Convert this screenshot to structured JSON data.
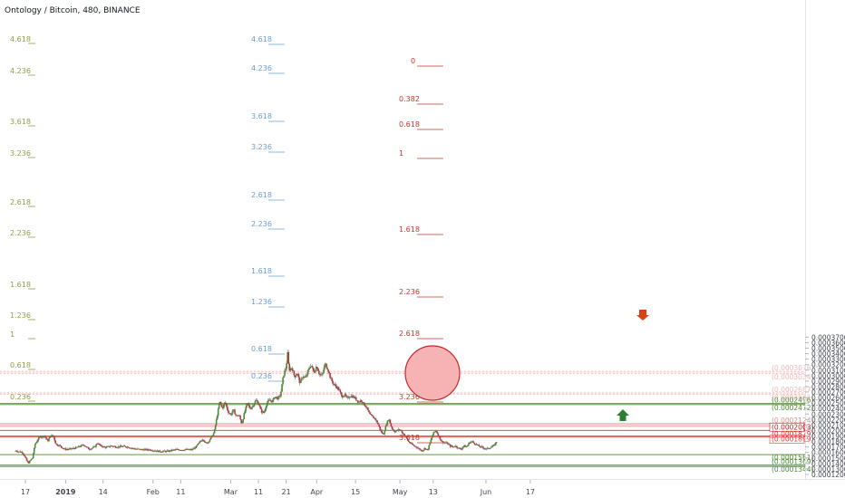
{
  "chart_data": {
    "type": "candlestick",
    "title": "Ontology / Bitcoin, 480, BINANCE",
    "xlabel": "",
    "ylabel": "",
    "ylim": [
      0.00011,
      0.00037
    ],
    "yticks": [
      "0.0003700",
      "0.0003600",
      "0.0003500",
      "0.0003400",
      "0.0003300",
      "0.0003200",
      "0.0003100",
      "0.0003000",
      "0.0002900",
      "0.0002800",
      "0.0002700",
      "0.0002600",
      "0.0002500",
      "0.0002400",
      "0.0002300",
      "0.0002200",
      "0.0002100",
      "0.0002000",
      "0.0001900",
      "0.0001800",
      "0.0001700",
      "0.0001600",
      "0.0001500",
      "0.0001400",
      "0.0001300",
      "0.0001200"
    ],
    "xticks": [
      {
        "label": "17",
        "day": 0
      },
      {
        "label": "2019",
        "day": 14.5,
        "bold": true
      },
      {
        "label": "14",
        "day": 28
      },
      {
        "label": "Feb",
        "day": 46
      },
      {
        "label": "11",
        "day": 56
      },
      {
        "label": "Mar",
        "day": 74
      },
      {
        "label": "11",
        "day": 84
      },
      {
        "label": "21",
        "day": 94
      },
      {
        "label": "Apr",
        "day": 105
      },
      {
        "label": "15",
        "day": 119
      },
      {
        "label": "May",
        "day": 135
      },
      {
        "label": "13",
        "day": 147
      },
      {
        "label": "Jun",
        "day": 166
      },
      {
        "label": "17",
        "day": 182
      }
    ],
    "price_path": [
      [
        -3.5,
        0.000163
      ],
      [
        -1,
        0.00016
      ],
      [
        1,
        0.00014
      ],
      [
        2.5,
        0.00015
      ],
      [
        3.5,
        0.000175
      ],
      [
        5,
        0.000188
      ],
      [
        7,
        0.00019
      ],
      [
        8,
        0.00018
      ],
      [
        9,
        0.00019
      ],
      [
        10,
        0.000191
      ],
      [
        11,
        0.000175
      ],
      [
        12.5,
        0.000172
      ],
      [
        14,
        0.000166
      ],
      [
        16,
        0.000166
      ],
      [
        18,
        0.000168
      ],
      [
        21,
        0.000174
      ],
      [
        23,
        0.000166
      ],
      [
        25,
        0.00017
      ],
      [
        26,
        0.000178
      ],
      [
        27,
        0.000172
      ],
      [
        29,
        0.000169
      ],
      [
        31,
        0.000172
      ],
      [
        33,
        0.00017
      ],
      [
        35,
        0.000171
      ],
      [
        37,
        0.00017
      ],
      [
        39,
        0.000167
      ],
      [
        42,
        0.000165
      ],
      [
        45,
        0.000165
      ],
      [
        48,
        0.000162
      ],
      [
        51,
        0.000162
      ],
      [
        54,
        0.000165
      ],
      [
        57,
        0.000165
      ],
      [
        60,
        0.000165
      ],
      [
        61.5,
        0.00017
      ],
      [
        63,
        0.00018
      ],
      [
        64,
        0.000185
      ],
      [
        65,
        0.000176
      ],
      [
        66,
        0.00018
      ],
      [
        67,
        0.000188
      ],
      [
        68,
        0.000196
      ],
      [
        68.7,
        0.000215
      ],
      [
        69.3,
        0.000232
      ],
      [
        70,
        0.000253
      ],
      [
        71,
        0.00024
      ],
      [
        72,
        0.000252
      ],
      [
        73,
        0.000235
      ],
      [
        74,
        0.000228
      ],
      [
        75,
        0.000238
      ],
      [
        76,
        0.000226
      ],
      [
        77,
        0.000228
      ],
      [
        78,
        0.000212
      ],
      [
        79,
        0.000233
      ],
      [
        80,
        0.00025
      ],
      [
        81,
        0.00024
      ],
      [
        82,
        0.000245
      ],
      [
        83,
        0.000255
      ],
      [
        84,
        0.00025
      ],
      [
        85,
        0.000235
      ],
      [
        86,
        0.000232
      ],
      [
        87,
        0.00025
      ],
      [
        88,
        0.000255
      ],
      [
        89,
        0.000253
      ],
      [
        90,
        0.000262
      ],
      [
        91,
        0.000258
      ],
      [
        92,
        0.000265
      ],
      [
        93,
        0.0003
      ],
      [
        94,
        0.000316
      ],
      [
        94.5,
        0.00034
      ],
      [
        95,
        0.00031
      ],
      [
        96,
        0.000315
      ],
      [
        97,
        0.000298
      ],
      [
        98,
        0.000305
      ],
      [
        99,
        0.000285
      ],
      [
        100,
        0.0003
      ],
      [
        101,
        0.000295
      ],
      [
        102,
        0.00031
      ],
      [
        103,
        0.00032
      ],
      [
        104,
        0.000305
      ],
      [
        105,
        0.000318
      ],
      [
        106,
        0.000302
      ],
      [
        107,
        0.0003
      ],
      [
        108,
        0.000322
      ],
      [
        109,
        0.000312
      ],
      [
        110,
        0.000295
      ],
      [
        111,
        0.000285
      ],
      [
        112,
        0.00028
      ],
      [
        113,
        0.000275
      ],
      [
        114,
        0.000262
      ],
      [
        115,
        0.000265
      ],
      [
        116,
        0.000258
      ],
      [
        117,
        0.000263
      ],
      [
        118,
        0.000262
      ],
      [
        119,
        0.000258
      ],
      [
        120,
        0.000252
      ],
      [
        121,
        0.000255
      ],
      [
        122,
        0.000248
      ],
      [
        123,
        0.000242
      ],
      [
        124,
        0.00023
      ],
      [
        125,
        0.000225
      ],
      [
        126,
        0.000222
      ],
      [
        127,
        0.000213
      ],
      [
        128,
        0.0002
      ],
      [
        129,
        0.000192
      ],
      [
        130,
        0.00021
      ],
      [
        131,
        0.000222
      ],
      [
        132,
        0.000205
      ],
      [
        133,
        0.000198
      ],
      [
        134,
        0.0002
      ],
      [
        135,
        0.000202
      ],
      [
        136,
        0.000195
      ],
      [
        137,
        0.00019
      ],
      [
        138,
        0.00018
      ],
      [
        139,
        0.000176
      ],
      [
        140,
        0.000172
      ],
      [
        141,
        0.00017
      ],
      [
        142,
        0.000166
      ],
      [
        143,
        0.000163
      ],
      [
        144,
        0.000168
      ],
      [
        145,
        0.000164
      ],
      [
        146,
        0.00018
      ],
      [
        147,
        0.000195
      ],
      [
        148,
        0.0002
      ],
      [
        149,
        0.00019
      ],
      [
        150,
        0.00018
      ],
      [
        151,
        0.000178
      ],
      [
        152,
        0.000177
      ],
      [
        153,
        0.000172
      ],
      [
        154,
        0.00017
      ],
      [
        155,
        0.000172
      ],
      [
        156,
        0.000168
      ],
      [
        157,
        0.000166
      ],
      [
        158,
        0.000172
      ],
      [
        159,
        0.00017
      ],
      [
        160,
        0.000178
      ],
      [
        161,
        0.00018
      ],
      [
        162,
        0.000176
      ],
      [
        163,
        0.000173
      ],
      [
        164,
        0.00017
      ],
      [
        165,
        0.000169
      ],
      [
        166,
        0.000166
      ],
      [
        167,
        0.000168
      ],
      [
        168,
        0.00017
      ],
      [
        169,
        0.000173
      ],
      [
        170,
        0.000181
      ]
    ],
    "fib_left_labels": [
      "4.618",
      "4.236",
      "3.618",
      "3.236",
      "2.618",
      "2.236",
      "1.618",
      "1.236",
      "1",
      "0.618",
      "0.236"
    ],
    "fib_mid_labels": [
      "4.618",
      "4.236",
      "3.618",
      "3.236",
      "2.618",
      "2.236",
      "1.618",
      "1.236",
      "0.618",
      "0.236"
    ],
    "fib_right_labels": [
      "0",
      "0.382",
      "0.618",
      "1",
      "1.618",
      "2.236",
      "2.618",
      "3.236",
      "3.618"
    ],
    "levels": [
      {
        "label": "(0.0003076)",
        "value": 0.0003076,
        "color": "#f2b8b8"
      },
      {
        "label": "(0.0003034)",
        "value": 0.0003034,
        "color": "#f2b8b8"
      },
      {
        "label": "(0.0002687)",
        "value": 0.0002687,
        "color": "#f2b8b8"
      },
      {
        "label": "(0.0002661)",
        "value": 0.0002661,
        "color": "#f2b8b8"
      },
      {
        "label": "(0.0002496)",
        "value": 0.0002496,
        "color": "#4c8a2f"
      },
      {
        "label": "(0.0002472)",
        "value": 0.0002472,
        "color": "#4c8a2f"
      },
      {
        "label": "(0.0002124)",
        "value": 0.0002124,
        "color": "#e09090"
      },
      {
        "label": "(0.0002075)",
        "value": 0.0002075,
        "color": "#e09090"
      },
      {
        "label": "(0.0002003)",
        "value": 0.0002003,
        "color": "#b71c1c",
        "boxed": true
      },
      {
        "label": "(0.0001899)",
        "value": 0.0001899,
        "color": "#e53935",
        "boxed": true
      },
      {
        "label": "(0.0001879)",
        "value": 0.0001879,
        "color": "#e53935"
      },
      {
        "label": "(0.0001561)",
        "value": 0.0001561,
        "color": "#4c8a2f"
      },
      {
        "label": "(0.0001369)",
        "value": 0.0001369,
        "color": "#4c8a2f"
      },
      {
        "label": "(0.0001344)",
        "value": 0.0001344,
        "color": "#4c8a2f"
      }
    ],
    "colors": {
      "up": "#4c8a2f",
      "down": "#b3393b",
      "fib_left": "#8aa04a",
      "fib_mid": "#6a9bd3",
      "fib_right": "#c0392b",
      "circle_fill": "#f7b3b3",
      "circle_stroke": "#c62828",
      "arrow_red": "#d84315",
      "arrow_green": "#2e7d32"
    }
  }
}
